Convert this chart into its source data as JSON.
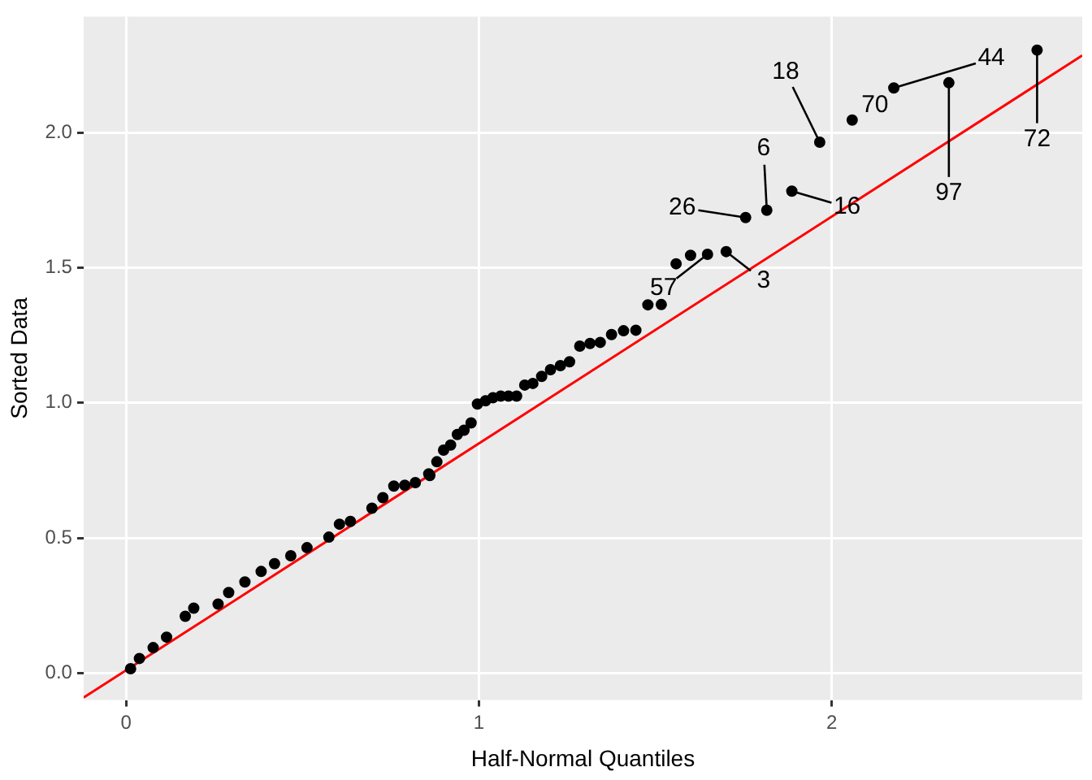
{
  "chart_data": {
    "type": "scatter",
    "xlabel": "Half-Normal Quantiles",
    "ylabel": "Sorted Data",
    "xlim": [
      -0.12,
      2.71
    ],
    "ylim": [
      -0.1,
      2.43
    ],
    "xticks": [
      0,
      1,
      2
    ],
    "yticks": [
      {
        "value": 0,
        "label": "0.0"
      },
      {
        "value": 0.5,
        "label": "0.5"
      },
      {
        "value": 1,
        "label": "1.0"
      },
      {
        "value": 1.5,
        "label": "1.5"
      },
      {
        "value": 2,
        "label": "2.0"
      }
    ],
    "grid": true,
    "legend": false,
    "marker": "circle",
    "series": [
      {
        "color": "#000000",
        "x": [
          0.013,
          0.038,
          0.077,
          0.115,
          0.168,
          0.192,
          0.261,
          0.291,
          0.337,
          0.383,
          0.421,
          0.467,
          0.513,
          0.575,
          0.605,
          0.636,
          0.697,
          0.728,
          0.759,
          0.79,
          0.82,
          0.858,
          0.861,
          0.881,
          0.9,
          0.92,
          0.939,
          0.958,
          0.978,
          0.996,
          1.019,
          1.04,
          1.062,
          1.084,
          1.107,
          1.13,
          1.153,
          1.178,
          1.203,
          1.231,
          1.257,
          1.286,
          1.315,
          1.344,
          1.376,
          1.41,
          1.445,
          1.479,
          1.517,
          1.559,
          1.6,
          1.648,
          1.701,
          1.756,
          1.816,
          1.887,
          1.966,
          2.058,
          2.176,
          2.332,
          2.582
        ],
        "values": [
          0.016,
          0.054,
          0.094,
          0.133,
          0.21,
          0.24,
          0.255,
          0.298,
          0.337,
          0.376,
          0.405,
          0.434,
          0.464,
          0.503,
          0.551,
          0.561,
          0.61,
          0.649,
          0.692,
          0.695,
          0.705,
          0.737,
          0.731,
          0.782,
          0.825,
          0.844,
          0.883,
          0.899,
          0.926,
          0.996,
          1.008,
          1.019,
          1.025,
          1.025,
          1.025,
          1.066,
          1.072,
          1.098,
          1.123,
          1.138,
          1.152,
          1.21,
          1.22,
          1.224,
          1.253,
          1.267,
          1.269,
          1.363,
          1.364,
          1.515,
          1.546,
          1.55,
          1.56,
          1.686,
          1.713,
          1.784,
          1.965,
          2.047,
          2.166,
          2.185,
          2.306
        ]
      },
      {
        "type": "line",
        "color": "#ff0000",
        "marker": "none",
        "x": [
          -0.12,
          2.71
        ],
        "values": [
          -0.091,
          2.286
        ]
      }
    ],
    "annotations": [
      {
        "text": "72",
        "x": 2.582,
        "y": 2.306
      },
      {
        "text": "97",
        "x": 2.332,
        "y": 2.185
      },
      {
        "text": "44",
        "x": 2.176,
        "y": 2.166
      },
      {
        "text": "70",
        "x": 2.058,
        "y": 2.047
      },
      {
        "text": "18",
        "x": 1.966,
        "y": 1.965
      },
      {
        "text": "16",
        "x": 1.887,
        "y": 1.784
      },
      {
        "text": "6",
        "x": 1.816,
        "y": 1.713
      },
      {
        "text": "26",
        "x": 1.756,
        "y": 1.686
      },
      {
        "text": "3",
        "x": 1.701,
        "y": 1.56
      },
      {
        "text": "57",
        "x": 1.648,
        "y": 1.55
      }
    ]
  }
}
